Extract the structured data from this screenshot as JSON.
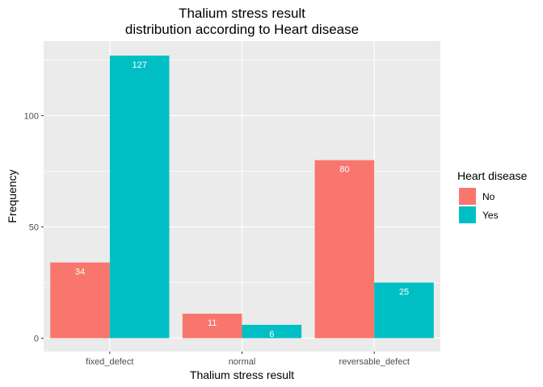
{
  "chart_data": {
    "type": "bar",
    "title_line1": "Thalium stress result",
    "title_line2": "distribution according to Heart disease",
    "xlabel": "Thalium stress result",
    "ylabel": "Frequency",
    "categories": [
      "fixed_defect",
      "normal",
      "reversable_defect"
    ],
    "series": [
      {
        "name": "No",
        "values": [
          34,
          11,
          80
        ],
        "color": "#F8766D"
      },
      {
        "name": "Yes",
        "values": [
          127,
          6,
          25
        ],
        "color": "#00BFC4"
      }
    ],
    "ylim": [
      -6,
      133.5
    ],
    "yticks": [
      0,
      50,
      100
    ],
    "ytick_labels": [
      "0",
      "50",
      "100"
    ],
    "grid": true,
    "legend_title": "Heart disease",
    "legend_position": "right",
    "panel_background": "#EBEBEB",
    "grid_color": "#FFFFFF"
  }
}
